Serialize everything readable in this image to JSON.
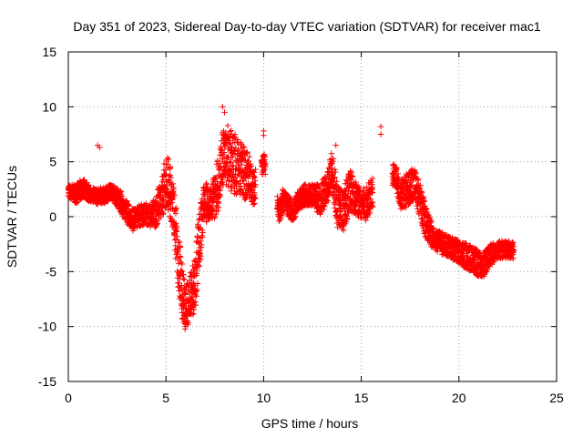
{
  "chart_data": {
    "type": "scatter",
    "title": "Day 351 of 2023, Sidereal Day-to-day VTEC variation (SDTVAR) for receiver mac1",
    "xlabel": "GPS time / hours",
    "ylabel": "SDTVAR / TECUs",
    "xlim": [
      0,
      25
    ],
    "ylim": [
      -15,
      15
    ],
    "xticks": [
      0,
      5,
      10,
      15,
      20,
      25
    ],
    "yticks": [
      -15,
      -10,
      -5,
      0,
      5,
      10,
      15
    ],
    "grid": true,
    "marker": "+",
    "color": "#ff0000",
    "series": [
      {
        "name": "SDTVAR",
        "trend": [
          [
            0.0,
            2.5
          ],
          [
            0.2,
            2.2
          ],
          [
            0.4,
            2.0
          ],
          [
            0.6,
            2.4
          ],
          [
            0.8,
            2.6
          ],
          [
            1.0,
            2.2
          ],
          [
            1.2,
            2.0
          ],
          [
            1.5,
            1.8
          ],
          [
            1.8,
            2.0
          ],
          [
            2.1,
            2.2
          ],
          [
            2.4,
            2.0
          ],
          [
            2.7,
            1.3
          ],
          [
            3.0,
            0.4
          ],
          [
            3.3,
            -0.3
          ],
          [
            3.6,
            0.0
          ],
          [
            3.9,
            0.3
          ],
          [
            4.2,
            0.0
          ],
          [
            4.5,
            0.5
          ],
          [
            4.8,
            1.8
          ],
          [
            5.0,
            3.5
          ],
          [
            5.2,
            2.5
          ],
          [
            5.4,
            0.5
          ],
          [
            5.6,
            -3.0
          ],
          [
            5.8,
            -6.5
          ],
          [
            6.0,
            -8.5
          ],
          [
            6.2,
            -7.5
          ],
          [
            6.5,
            -6.0
          ],
          [
            6.7,
            -2.0
          ],
          [
            7.0,
            1.5
          ],
          [
            7.3,
            1.0
          ],
          [
            7.6,
            2.5
          ],
          [
            7.8,
            4.5
          ],
          [
            8.1,
            5.5
          ],
          [
            8.4,
            5.0
          ],
          [
            8.7,
            4.5
          ],
          [
            9.0,
            4.0
          ],
          [
            9.3,
            3.5
          ],
          [
            9.5,
            2.5
          ],
          [
            10.0,
            5.0
          ],
          [
            10.8,
            0.5
          ],
          [
            11.0,
            1.5
          ],
          [
            11.5,
            0.5
          ],
          [
            11.8,
            1.5
          ],
          [
            12.1,
            2.0
          ],
          [
            12.5,
            2.0
          ],
          [
            12.9,
            1.5
          ],
          [
            13.2,
            2.5
          ],
          [
            13.5,
            4.0
          ],
          [
            13.8,
            1.0
          ],
          [
            14.1,
            0.5
          ],
          [
            14.4,
            2.5
          ],
          [
            14.8,
            1.5
          ],
          [
            15.2,
            1.0
          ],
          [
            15.5,
            2.0
          ],
          [
            16.7,
            4.0
          ],
          [
            17.0,
            2.0
          ],
          [
            17.4,
            2.5
          ],
          [
            17.7,
            3.0
          ],
          [
            18.0,
            1.5
          ],
          [
            18.3,
            -0.5
          ],
          [
            18.7,
            -2.0
          ],
          [
            19.2,
            -2.5
          ],
          [
            19.8,
            -3.0
          ],
          [
            20.3,
            -3.5
          ],
          [
            20.8,
            -4.0
          ],
          [
            21.2,
            -4.5
          ],
          [
            21.6,
            -3.5
          ],
          [
            22.0,
            -3.0
          ],
          [
            22.4,
            -3.0
          ],
          [
            22.8,
            -3.0
          ]
        ],
        "spread": [
          0.6,
          0.8,
          0.9,
          0.9,
          0.8,
          0.8,
          0.7,
          0.7,
          0.8,
          0.8,
          0.8,
          1.0,
          1.0,
          1.0,
          1.0,
          1.0,
          1.0,
          1.5,
          2.0,
          2.5,
          2.5,
          2.5,
          3.0,
          2.5,
          2.0,
          2.0,
          2.5,
          3.0,
          2.0,
          1.5,
          2.5,
          3.0,
          3.0,
          3.0,
          2.5,
          2.5,
          2.0,
          1.5,
          1.0,
          1.0,
          1.0,
          1.0,
          1.0,
          1.0,
          1.0,
          1.5,
          1.5,
          2.0,
          2.0,
          2.0,
          2.0,
          1.5,
          1.5,
          1.5,
          1.0,
          1.5,
          1.5,
          1.5,
          1.5,
          1.5,
          1.0,
          1.0,
          1.0,
          1.2,
          1.2,
          1.2,
          1.0,
          0.8,
          0.8,
          0.8
        ],
        "gaps": [
          [
            9.6,
            9.9
          ],
          [
            10.1,
            10.7
          ],
          [
            15.6,
            16.6
          ]
        ],
        "samples_per_hour": 60,
        "outliers": [
          [
            1.5,
            6.5
          ],
          [
            1.6,
            6.3
          ],
          [
            7.9,
            10.0
          ],
          [
            8.0,
            9.5
          ],
          [
            10.0,
            7.8
          ],
          [
            10.0,
            7.4
          ],
          [
            16.0,
            8.2
          ],
          [
            16.0,
            7.5
          ],
          [
            13.7,
            6.5
          ],
          [
            6.0,
            -10.0
          ]
        ]
      }
    ]
  }
}
